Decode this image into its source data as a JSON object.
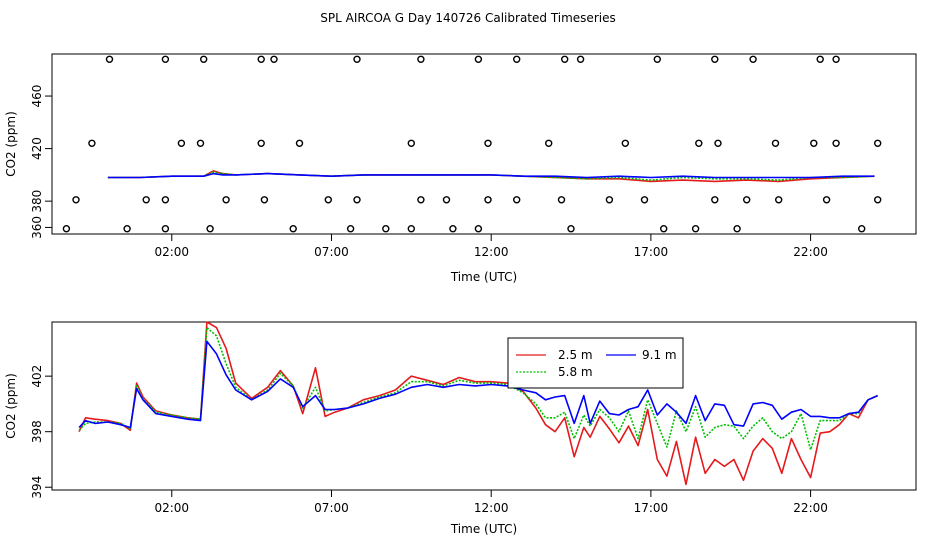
{
  "title": "SPL AIRCOA G  Day 140726  Calibrated Timeseries",
  "colors": {
    "s1": "#e41a1c",
    "s2": "#00c000",
    "s3": "#0000ff"
  },
  "chart_data": [
    {
      "type": "line",
      "title": "SPL AIRCOA G  Day 140726  Calibrated Timeseries",
      "xlabel": "Time (UTC)",
      "ylabel": "CO2 (ppm)",
      "xlim": [
        -1.75,
        25.3
      ],
      "ylim": [
        355,
        492
      ],
      "xticks": [
        2,
        7,
        12,
        17,
        22
      ],
      "xtick_labels": [
        "02:00",
        "07:00",
        "12:00",
        "17:00",
        "22:00"
      ],
      "yticks": [
        360,
        380,
        420,
        460
      ],
      "ytick_labels": [
        "360",
        "380",
        "420",
        "460"
      ],
      "series": [
        {
          "name": "2.5 m",
          "color_key": "s1",
          "x": [
            0,
            1,
            2,
            2.5,
            3,
            3.3,
            3.6,
            4,
            5,
            6,
            7,
            8,
            9,
            10,
            11,
            12,
            13,
            14,
            15,
            16,
            17,
            18,
            19,
            20,
            21,
            22,
            23,
            24
          ],
          "values": [
            398,
            398,
            399,
            399,
            399,
            403,
            401,
            400,
            401,
            400,
            399,
            400,
            400,
            400,
            400,
            400,
            399,
            398,
            397,
            397,
            395,
            396,
            395,
            396,
            395,
            397,
            398,
            399
          ]
        },
        {
          "name": "5.8 m",
          "color_key": "s2",
          "x": [
            0,
            1,
            2,
            2.5,
            3,
            3.3,
            3.6,
            4,
            5,
            6,
            7,
            8,
            9,
            10,
            11,
            12,
            13,
            14,
            15,
            16,
            17,
            18,
            19,
            20,
            21,
            22,
            23,
            24
          ],
          "values": [
            398,
            398,
            399,
            399,
            399,
            402,
            401,
            400,
            401,
            400,
            399,
            400,
            400,
            400,
            400,
            400,
            399,
            398,
            397,
            398,
            396,
            398,
            397,
            397,
            396,
            398,
            398,
            399
          ]
        },
        {
          "name": "9.1 m",
          "color_key": "s3",
          "x": [
            0,
            1,
            2,
            2.5,
            3,
            3.3,
            3.6,
            4,
            5,
            6,
            7,
            8,
            9,
            10,
            11,
            12,
            13,
            14,
            15,
            16,
            17,
            18,
            19,
            20,
            21,
            22,
            23,
            24
          ],
          "values": [
            398,
            398,
            399,
            399,
            399,
            401,
            400,
            400,
            401,
            400,
            399,
            400,
            400,
            400,
            400,
            400,
            399,
            399,
            398,
            399,
            398,
            399,
            398,
            398,
            398,
            398,
            399,
            399
          ]
        }
      ],
      "markers": {
        "shape": "circle",
        "rows": [
          {
            "y": 488,
            "x": [
              0.05,
              1.8,
              3.0,
              4.8,
              5.2,
              7.8,
              9.8,
              11.6,
              12.8,
              14.3,
              14.8,
              17.2,
              19.0,
              20.2,
              22.3,
              22.8
            ]
          },
          {
            "y": 424,
            "x": [
              -0.5,
              2.3,
              2.9,
              4.8,
              6.0,
              9.5,
              11.9,
              13.8,
              16.2,
              18.5,
              19.1,
              20.9,
              22.1,
              22.8,
              24.1
            ]
          },
          {
            "y": 381,
            "x": [
              -1.0,
              1.2,
              1.8,
              3.7,
              4.9,
              6.9,
              7.8,
              9.8,
              10.6,
              11.9,
              12.8,
              14.2,
              15.7,
              16.8,
              19.0,
              20.0,
              21.0,
              22.5,
              24.1
            ]
          },
          {
            "y": 359,
            "x": [
              -1.3,
              0.6,
              1.8,
              3.2,
              5.8,
              7.6,
              8.7,
              9.5,
              10.8,
              11.6,
              14.5,
              17.4,
              18.4,
              19.7,
              23.6
            ]
          }
        ]
      }
    },
    {
      "type": "line",
      "title": "",
      "xlabel": "Time (UTC)",
      "ylabel": "CO2 (ppm)",
      "xlim": [
        -1.75,
        25.3
      ],
      "ylim": [
        393.8,
        405.9
      ],
      "xticks": [
        2,
        7,
        12,
        17,
        22
      ],
      "xtick_labels": [
        "02:00",
        "07:00",
        "12:00",
        "17:00",
        "22:00"
      ],
      "yticks": [
        394,
        398,
        402
      ],
      "ytick_labels": [
        "394",
        "398",
        "402"
      ],
      "legend_position": "top-center",
      "series": [
        {
          "name": "2.5 m",
          "color_key": "s1",
          "x": [
            -0.9,
            -0.7,
            -0.4,
            0,
            0.4,
            0.7,
            0.9,
            1.1,
            1.5,
            2,
            2.5,
            2.9,
            3.1,
            3.4,
            3.7,
            4.0,
            4.5,
            5.0,
            5.4,
            5.8,
            6.1,
            6.5,
            6.8,
            7.1,
            7.5,
            8,
            8.5,
            9,
            9.5,
            10,
            10.5,
            11,
            11.5,
            12,
            12.5,
            13,
            13.4,
            13.7,
            14,
            14.3,
            14.6,
            14.9,
            15.1,
            15.4,
            15.7,
            16.0,
            16.3,
            16.6,
            16.9,
            17.2,
            17.5,
            17.8,
            18.1,
            18.4,
            18.7,
            19,
            19.3,
            19.6,
            19.9,
            20.2,
            20.5,
            20.8,
            21.1,
            21.4,
            21.7,
            22.0,
            22.3,
            22.6,
            22.9,
            23.2,
            23.5,
            23.8,
            24.1
          ],
          "values": [
            398.0,
            399.0,
            398.9,
            398.8,
            398.6,
            398.1,
            401.5,
            400.5,
            399.5,
            399.2,
            399.0,
            398.9,
            405.9,
            405.5,
            404.0,
            401.5,
            400.4,
            401.2,
            402.4,
            401.3,
            399.3,
            402.6,
            399.1,
            399.4,
            399.7,
            400.3,
            400.6,
            401.0,
            402.0,
            401.7,
            401.4,
            401.9,
            401.6,
            401.6,
            401.5,
            400.9,
            399.7,
            398.5,
            398.0,
            399.0,
            396.2,
            398.3,
            397.6,
            399.1,
            398.2,
            397.2,
            398.4,
            397.0,
            399.6,
            396.0,
            394.8,
            397.3,
            394.2,
            397.6,
            395.0,
            396.0,
            395.5,
            396.0,
            394.5,
            396.6,
            397.5,
            396.8,
            395.0,
            397.5,
            396.0,
            394.7,
            397.9,
            398.0,
            398.5,
            399.3,
            399.0,
            400.3,
            400.6
          ]
        },
        {
          "name": "5.8 m",
          "color_key": "s2",
          "x": [
            -0.9,
            -0.7,
            -0.4,
            0,
            0.4,
            0.7,
            0.9,
            1.1,
            1.5,
            2,
            2.5,
            2.9,
            3.1,
            3.4,
            3.7,
            4.0,
            4.5,
            5.0,
            5.4,
            5.8,
            6.1,
            6.5,
            6.8,
            7.1,
            7.5,
            8,
            8.5,
            9,
            9.5,
            10,
            10.5,
            11,
            11.5,
            12,
            12.5,
            13,
            13.4,
            13.7,
            14,
            14.3,
            14.6,
            14.9,
            15.1,
            15.4,
            15.7,
            16.0,
            16.3,
            16.6,
            16.9,
            17.2,
            17.5,
            17.8,
            18.1,
            18.4,
            18.7,
            19,
            19.3,
            19.6,
            19.9,
            20.2,
            20.5,
            20.8,
            21.1,
            21.4,
            21.7,
            22.0,
            22.3,
            22.6,
            22.9,
            23.2,
            23.5,
            23.8,
            24.1
          ],
          "values": [
            398.1,
            398.6,
            398.7,
            398.7,
            398.6,
            398.2,
            401.3,
            400.4,
            399.4,
            399.2,
            399.0,
            398.9,
            405.5,
            404.9,
            402.9,
            401.2,
            400.3,
            401.0,
            402.2,
            401.3,
            399.7,
            401.2,
            399.5,
            399.6,
            399.7,
            400.1,
            400.5,
            400.8,
            401.6,
            401.6,
            401.3,
            401.7,
            401.5,
            401.5,
            401.4,
            400.8,
            400.0,
            399.0,
            399.0,
            399.4,
            397.5,
            399.2,
            398.4,
            399.6,
            399.0,
            398.0,
            399.5,
            397.5,
            400.3,
            398.6,
            396.9,
            399.5,
            398.0,
            399.8,
            397.6,
            398.3,
            398.5,
            398.4,
            397.5,
            398.4,
            399.0,
            398.0,
            397.5,
            398.0,
            399.3,
            396.7,
            398.8,
            398.8,
            398.8,
            399.3,
            399.3,
            400.3,
            400.6
          ]
        },
        {
          "name": "9.1 m",
          "color_key": "s3",
          "x": [
            -0.9,
            -0.7,
            -0.4,
            0,
            0.4,
            0.7,
            0.9,
            1.1,
            1.5,
            2,
            2.5,
            2.9,
            3.1,
            3.4,
            3.7,
            4.0,
            4.5,
            5.0,
            5.4,
            5.8,
            6.1,
            6.5,
            6.8,
            7.1,
            7.5,
            8,
            8.5,
            9,
            9.5,
            10,
            10.5,
            11,
            11.5,
            12,
            12.5,
            13,
            13.4,
            13.7,
            14,
            14.3,
            14.6,
            14.9,
            15.1,
            15.4,
            15.7,
            16.0,
            16.3,
            16.6,
            16.9,
            17.2,
            17.5,
            17.8,
            18.1,
            18.4,
            18.7,
            19,
            19.3,
            19.6,
            19.9,
            20.2,
            20.5,
            20.8,
            21.1,
            21.4,
            21.7,
            22.0,
            22.3,
            22.6,
            22.9,
            23.2,
            23.5,
            23.8,
            24.1
          ],
          "values": [
            398.3,
            398.8,
            398.6,
            398.7,
            398.5,
            398.3,
            401.1,
            400.3,
            399.3,
            399.1,
            398.9,
            398.8,
            404.5,
            403.6,
            402.1,
            401.0,
            400.3,
            400.9,
            401.8,
            401.2,
            399.8,
            400.6,
            399.6,
            399.6,
            399.7,
            400.0,
            400.4,
            400.7,
            401.2,
            401.4,
            401.2,
            401.4,
            401.3,
            401.4,
            401.3,
            401.0,
            400.8,
            400.3,
            400.5,
            400.6,
            398.6,
            400.6,
            398.6,
            400.2,
            399.3,
            399.2,
            399.6,
            399.8,
            401.0,
            399.2,
            400.0,
            399.4,
            398.6,
            400.6,
            398.8,
            400.0,
            399.9,
            398.5,
            398.4,
            400.0,
            400.1,
            399.9,
            398.9,
            399.4,
            399.6,
            399.1,
            399.1,
            399.0,
            399.0,
            399.3,
            399.4,
            400.3,
            400.6
          ]
        }
      ]
    }
  ]
}
